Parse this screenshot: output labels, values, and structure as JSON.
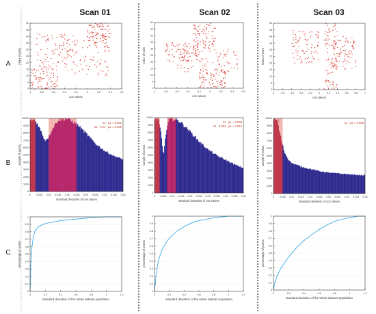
{
  "columns": [
    "Scan 01",
    "Scan 02",
    "Scan 03"
  ],
  "rows": [
    "A",
    "B",
    "C"
  ],
  "colors": {
    "scatter": "#d9352b",
    "histogram": "#2e2a8f",
    "highlight1": "#c0354d",
    "highlight2": "#b5256a",
    "shade": "#f3b9b1",
    "annotation": "#c0392b",
    "cdf": "#4fb3e6",
    "divider": "#222222"
  },
  "chart_data": [
    {
      "type": "scatter",
      "panel": "A",
      "scan": "Scan 01",
      "xlabel": "cos values",
      "ylabel": "index of point",
      "xlim": [
        -1,
        0.6
      ],
      "ylim": [
        0,
        50
      ],
      "xticks": [
        "-1",
        "-0.8",
        "-0.6",
        "-0.4",
        "-0.2",
        "0",
        "0.2",
        "0.4",
        "0.6"
      ],
      "yticks": [
        "0",
        "5",
        "10",
        "15",
        "20",
        "25",
        "30",
        "35",
        "40",
        "45",
        "50"
      ],
      "clusters": [
        {
          "x": [
            0.0,
            0.4
          ],
          "y": [
            35,
            50
          ]
        },
        {
          "x": [
            -0.9,
            -0.2
          ],
          "y": [
            18,
            42
          ]
        },
        {
          "x": [
            -1.0,
            -0.5
          ],
          "y": [
            0,
            18
          ]
        },
        {
          "x": [
            -0.4,
            0.4
          ],
          "y": [
            10,
            40
          ]
        }
      ]
    },
    {
      "type": "scatter",
      "panel": "A",
      "scan": "Scan 02",
      "xlabel": "cos values",
      "ylabel": "index of point",
      "xlim": [
        -1,
        0.6
      ],
      "ylim": [
        0,
        50
      ],
      "xticks": [
        "-1",
        "-0.8",
        "-0.6",
        "-0.4",
        "-0.2",
        "0",
        "0.2",
        "0.4",
        "0.6"
      ],
      "yticks": [
        "0",
        "5",
        "10",
        "15",
        "20",
        "25",
        "30",
        "35",
        "40",
        "45",
        "50"
      ],
      "clusters": [
        {
          "x": [
            -0.3,
            0.1
          ],
          "y": [
            30,
            50
          ]
        },
        {
          "x": [
            -0.8,
            -0.2
          ],
          "y": [
            20,
            35
          ]
        },
        {
          "x": [
            -0.2,
            0.3
          ],
          "y": [
            0,
            15
          ]
        },
        {
          "x": [
            -0.6,
            0.5
          ],
          "y": [
            12,
            30
          ]
        }
      ]
    },
    {
      "type": "scatter",
      "panel": "A",
      "scan": "Scan 03",
      "xlabel": "cos values",
      "ylabel": "index of point",
      "xlim": [
        -1,
        1
      ],
      "ylim": [
        0,
        50
      ],
      "xticks": [
        "-1",
        "-0.8",
        "-0.6",
        "-0.4",
        "-0.2",
        "0",
        "0.2",
        "0.4",
        "0.6",
        "0.8",
        "1"
      ],
      "yticks": [
        "0",
        "5",
        "10",
        "15",
        "20",
        "25",
        "30",
        "35",
        "40",
        "45",
        "50"
      ],
      "clusters": [
        {
          "x": [
            0.1,
            0.4
          ],
          "y": [
            0,
            50
          ]
        },
        {
          "x": [
            -0.6,
            0.0
          ],
          "y": [
            20,
            45
          ]
        },
        {
          "x": [
            0.3,
            0.8
          ],
          "y": [
            15,
            40
          ]
        }
      ]
    },
    {
      "type": "bar",
      "panel": "B",
      "scan": "Scan 01",
      "xlabel": "standard deviation of cos values",
      "ylabel": "sample of points",
      "xlim": [
        0,
        0.05
      ],
      "ylim": [
        0,
        10000
      ],
      "xticks": [
        "0",
        "0.005",
        "0.01",
        "0.015",
        "0.02",
        "0.025",
        "0.03",
        "0.035",
        "0.04",
        "0.045",
        "0.05"
      ],
      "yticks": [
        "0",
        "1000",
        "2000",
        "3000",
        "4000",
        "5000",
        "6000",
        "7000",
        "8000",
        "9000",
        "10000"
      ],
      "curve": [
        [
          0,
          9600
        ],
        [
          0.002,
          9900
        ],
        [
          0.004,
          9300
        ],
        [
          0.006,
          8200
        ],
        [
          0.008,
          7000
        ],
        [
          0.01,
          7500
        ],
        [
          0.012,
          8600
        ],
        [
          0.015,
          9800
        ],
        [
          0.02,
          10000
        ],
        [
          0.025,
          9300
        ],
        [
          0.03,
          8000
        ],
        [
          0.035,
          6600
        ],
        [
          0.04,
          5600
        ],
        [
          0.045,
          4900
        ],
        [
          0.05,
          4400
        ]
      ],
      "regions": [
        {
          "label": "s1",
          "x": [
            0,
            0.003
          ]
        },
        {
          "label": "s2",
          "x": [
            0.01,
            0.025
          ]
        }
      ],
      "annotations": [
        "s1 - μ± = 0.001",
        "s2 - 0.01 - μ± = 0.025"
      ]
    },
    {
      "type": "bar",
      "panel": "B",
      "scan": "Scan 02",
      "xlabel": "standard deviation of cos values",
      "ylabel": "sample of points",
      "xlim": [
        0,
        0.05
      ],
      "ylim": [
        0,
        10000
      ],
      "xticks": [
        "0",
        "0.005",
        "0.01",
        "0.015",
        "0.02",
        "0.025",
        "0.03",
        "0.035",
        "0.04",
        "0.045",
        "0.05"
      ],
      "yticks": [
        "0",
        "1000",
        "2000",
        "3000",
        "4000",
        "5000",
        "6000",
        "7000",
        "8000",
        "9000",
        "10000"
      ],
      "curve": [
        [
          0,
          9700
        ],
        [
          0.002,
          9900
        ],
        [
          0.0035,
          8200
        ],
        [
          0.005,
          5000
        ],
        [
          0.0065,
          8000
        ],
        [
          0.008,
          9700
        ],
        [
          0.01,
          9900
        ],
        [
          0.013,
          9700
        ],
        [
          0.015,
          9400
        ],
        [
          0.02,
          8200
        ],
        [
          0.025,
          6900
        ],
        [
          0.03,
          5800
        ],
        [
          0.035,
          5000
        ],
        [
          0.04,
          4400
        ],
        [
          0.045,
          3800
        ],
        [
          0.05,
          3300
        ]
      ],
      "regions": [
        {
          "label": "s1",
          "x": [
            0,
            0.003
          ]
        },
        {
          "label": "s2",
          "x": [
            0.007,
            0.012
          ]
        }
      ],
      "annotations": [
        "s1 - μ± = 0.002",
        "s2 - 0.004 - μ± = 0.012"
      ]
    },
    {
      "type": "bar",
      "panel": "B",
      "scan": "Scan 03",
      "xlabel": "standard deviation of cos values",
      "ylabel": "sample of points",
      "xlim": [
        0,
        0.05
      ],
      "ylim": [
        0,
        10000
      ],
      "xticks": [
        "0",
        "0.005",
        "0.01",
        "0.015",
        "0.02",
        "0.025",
        "0.03",
        "0.035",
        "0.04",
        "0.045",
        "0.05"
      ],
      "yticks": [
        "0",
        "1000",
        "2000",
        "3000",
        "4000",
        "5000",
        "6000",
        "7000",
        "8000",
        "9000",
        "10000"
      ],
      "curve": [
        [
          0,
          10000
        ],
        [
          0.002,
          9800
        ],
        [
          0.004,
          7500
        ],
        [
          0.006,
          5500
        ],
        [
          0.008,
          4600
        ],
        [
          0.01,
          4100
        ],
        [
          0.015,
          3600
        ],
        [
          0.02,
          3300
        ],
        [
          0.025,
          3000
        ],
        [
          0.03,
          2800
        ],
        [
          0.035,
          2700
        ],
        [
          0.04,
          2600
        ],
        [
          0.045,
          2500
        ],
        [
          0.05,
          2450
        ]
      ],
      "regions": [
        {
          "label": "s1",
          "x": [
            0,
            0.005
          ]
        }
      ],
      "annotations": [
        "s1 - μ± = 0.005"
      ]
    },
    {
      "type": "line",
      "panel": "C",
      "scan": "Scan 01",
      "xlabel": "standard deviation of the whole dataset population",
      "ylabel": "percentage of points",
      "xlim": [
        0,
        1.2
      ],
      "ylim": [
        0,
        1
      ],
      "xticks": [
        "0",
        "0.2",
        "0.4",
        "0.6",
        "0.8",
        "1",
        "1.2"
      ],
      "yticks": [
        "0",
        "0.1",
        "0.2",
        "0.3",
        "0.4",
        "0.5",
        "0.6",
        "0.7",
        "0.8",
        "0.9",
        "1"
      ],
      "x": [
        0,
        0.01,
        0.02,
        0.04,
        0.06,
        0.1,
        0.15,
        0.2,
        0.3,
        0.4,
        0.5,
        0.6,
        0.8,
        1.0,
        1.2
      ],
      "y": [
        0,
        0.35,
        0.55,
        0.72,
        0.8,
        0.86,
        0.89,
        0.91,
        0.93,
        0.95,
        0.96,
        0.97,
        0.99,
        1.0,
        1.0
      ]
    },
    {
      "type": "line",
      "panel": "C",
      "scan": "Scan 02",
      "xlabel": "standard deviation of the whole dataset population",
      "ylabel": "percentage of points",
      "xlim": [
        0,
        1.2
      ],
      "ylim": [
        0,
        1
      ],
      "xticks": [
        "0",
        "0.2",
        "0.4",
        "0.6",
        "0.8",
        "1",
        "1.2"
      ],
      "yticks": [
        "0",
        "0.1",
        "0.2",
        "0.3",
        "0.4",
        "0.5",
        "0.6",
        "0.7",
        "0.8",
        "0.9",
        "1"
      ],
      "x": [
        0,
        0.02,
        0.05,
        0.1,
        0.15,
        0.2,
        0.3,
        0.4,
        0.5,
        0.6,
        0.7,
        0.8,
        0.9,
        1.0,
        1.2
      ],
      "y": [
        0,
        0.2,
        0.4,
        0.55,
        0.64,
        0.71,
        0.8,
        0.86,
        0.91,
        0.94,
        0.96,
        0.98,
        0.99,
        1.0,
        1.0
      ]
    },
    {
      "type": "line",
      "panel": "C",
      "scan": "Scan 03",
      "xlabel": "standard deviation of the whole dataset population",
      "ylabel": "percentage of points",
      "xlim": [
        0,
        1.2
      ],
      "ylim": [
        0,
        1
      ],
      "xticks": [
        "0",
        "0.2",
        "0.4",
        "0.6",
        "0.8",
        "1",
        "1.2"
      ],
      "yticks": [
        "0",
        "0.1",
        "0.2",
        "0.3",
        "0.4",
        "0.5",
        "0.6",
        "0.7",
        "0.8",
        "0.9",
        "1"
      ],
      "x": [
        0,
        0.02,
        0.05,
        0.1,
        0.2,
        0.3,
        0.4,
        0.5,
        0.6,
        0.7,
        0.8,
        0.9,
        1.0,
        1.1,
        1.2
      ],
      "y": [
        0,
        0.1,
        0.2,
        0.3,
        0.45,
        0.57,
        0.67,
        0.75,
        0.82,
        0.88,
        0.93,
        0.96,
        0.98,
        1.0,
        1.0
      ]
    }
  ]
}
